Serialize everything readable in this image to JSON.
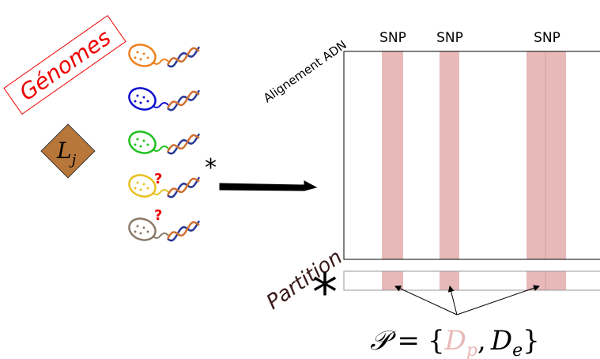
{
  "genomes_label": "Génomes",
  "lineage": {
    "base": "L",
    "sub": "j"
  },
  "query_marker": "*",
  "unknown_marks": [
    "?",
    "?"
  ],
  "alignment": {
    "title": "Alignement ADN",
    "snp_labels": [
      "SNP",
      "SNP",
      "SNP"
    ]
  },
  "partition": {
    "label": "Partition",
    "marker": "*"
  },
  "formula": {
    "lhs": "𝒫",
    "eq": "=",
    "open": "{",
    "d1": "D",
    "d1_sub": "p",
    "comma": ",",
    "d2": "D",
    "d2_sub": "e",
    "close": "}"
  }
}
